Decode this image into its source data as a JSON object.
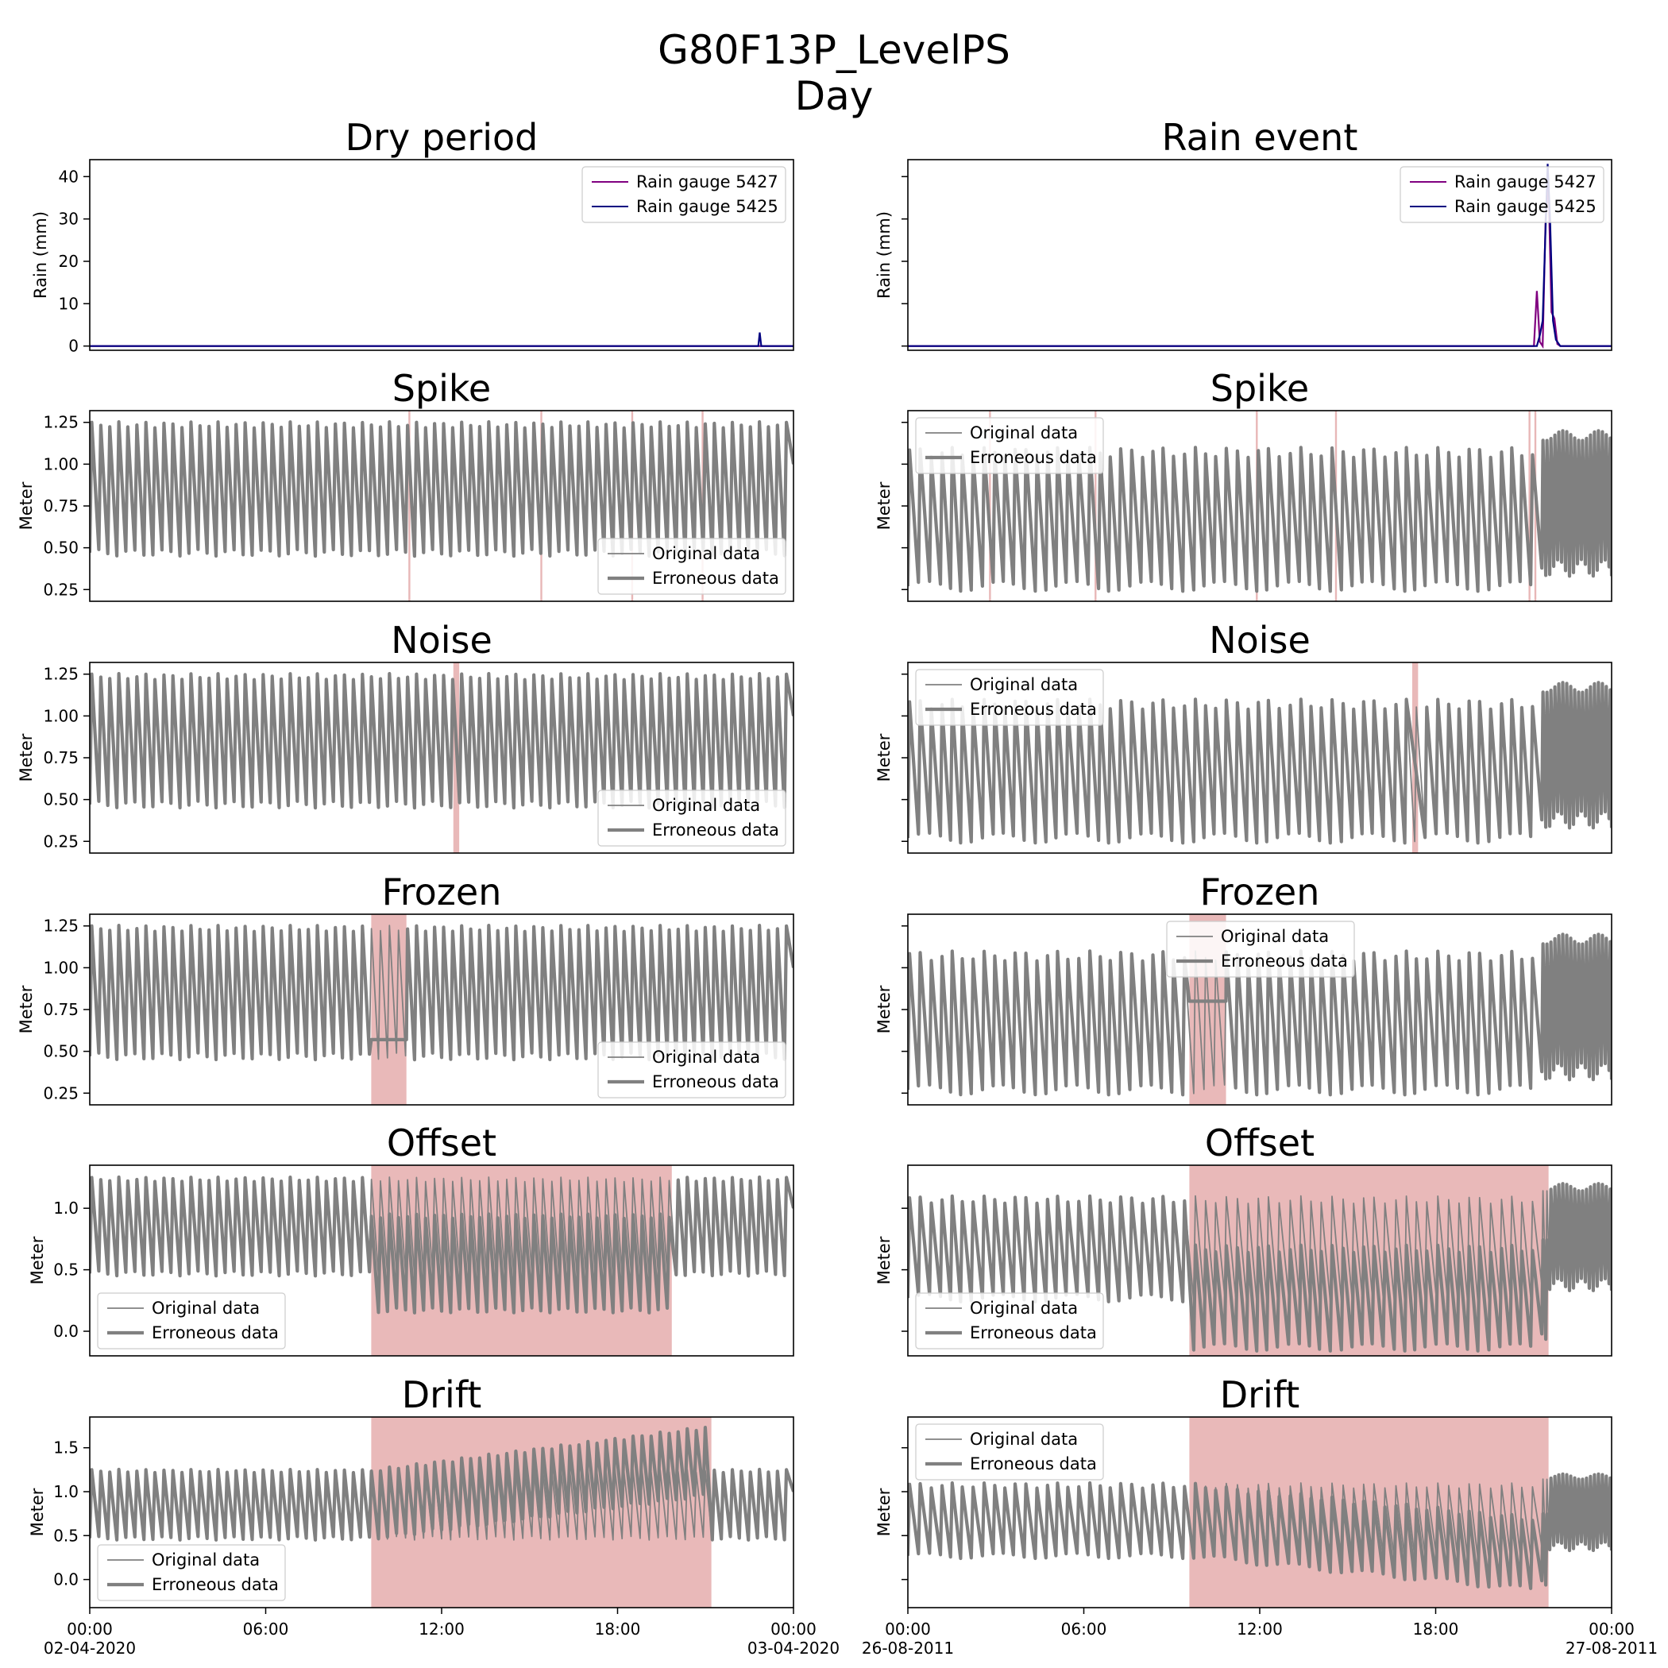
{
  "figure": {
    "title_line1": "G80F13P_LevelPS",
    "title_line2": "Day"
  },
  "colors": {
    "rain_5427": "#800080",
    "rain_5425": "#000080",
    "data_line": "#808080",
    "error_span": "#d98787"
  },
  "chart_data": [
    {
      "id": "rain-dry",
      "type": "line",
      "title": "Dry period",
      "ylabel": "Rain (mm)",
      "ylim": [
        -1,
        44
      ],
      "yticks": [
        "0",
        "10",
        "20",
        "30",
        "40"
      ],
      "ytick_values": [
        0,
        10,
        20,
        30,
        40
      ],
      "legend_loc": "top-right",
      "x_range_hours": [
        0,
        24
      ],
      "series": [
        {
          "name": "Rain gauge 5427",
          "points": [
            [
              0,
              0
            ],
            [
              24,
              0
            ]
          ]
        },
        {
          "name": "Rain gauge 5425",
          "points": [
            [
              0,
              0
            ],
            [
              22.8,
              0
            ],
            [
              22.85,
              3.2
            ],
            [
              22.9,
              0
            ],
            [
              24,
              0
            ]
          ]
        }
      ]
    },
    {
      "id": "rain-event",
      "type": "line",
      "title": "Rain event",
      "ylabel": "Rain (mm)",
      "ylim": [
        -1,
        44
      ],
      "yticks": [
        "",
        "",
        "",
        "",
        ""
      ],
      "ytick_values": [
        0,
        10,
        20,
        30,
        40
      ],
      "legend_loc": "top-right",
      "x_range_hours": [
        0,
        24
      ],
      "series": [
        {
          "name": "Rain gauge 5427",
          "points": [
            [
              0,
              0
            ],
            [
              21.35,
              0
            ],
            [
              21.45,
              13
            ],
            [
              21.55,
              1
            ],
            [
              21.65,
              0
            ],
            [
              21.75,
              30
            ],
            [
              21.85,
              38
            ],
            [
              21.95,
              8
            ],
            [
              22.05,
              6.5
            ],
            [
              22.15,
              0.5
            ],
            [
              22.25,
              0
            ],
            [
              24,
              0
            ]
          ]
        },
        {
          "name": "Rain gauge 5425",
          "points": [
            [
              0,
              0
            ],
            [
              21.45,
              0
            ],
            [
              21.55,
              2.5
            ],
            [
              21.65,
              6
            ],
            [
              21.75,
              28
            ],
            [
              21.82,
              43
            ],
            [
              21.9,
              30
            ],
            [
              22.0,
              6
            ],
            [
              22.1,
              1.5
            ],
            [
              22.25,
              0
            ],
            [
              24,
              0
            ]
          ]
        }
      ]
    },
    {
      "id": "spike-dry",
      "type": "line",
      "title": "Spike",
      "ylabel": "Meter",
      "ylim": [
        0.18,
        1.32
      ],
      "yticks": [
        "0.25",
        "0.50",
        "0.75",
        "1.00",
        "1.25"
      ],
      "ytick_values": [
        0.25,
        0.5,
        0.75,
        1.0,
        1.25
      ],
      "legend": [
        "Original data",
        "Erroneous data"
      ],
      "legend_loc": "lower-right",
      "error_type": "spike",
      "error_times_hours": [
        10.9,
        15.4,
        18.5,
        20.9
      ]
    },
    {
      "id": "spike-rain",
      "type": "line",
      "title": "Spike",
      "ylabel": "Meter",
      "ylim": [
        0.18,
        1.32
      ],
      "yticks": [
        "",
        "",
        "",
        "",
        ""
      ],
      "ytick_values": [
        0.25,
        0.5,
        0.75,
        1.0,
        1.25
      ],
      "legend": [
        "Original data",
        "Erroneous data"
      ],
      "legend_loc": "top-left",
      "error_type": "spike",
      "error_times_hours": [
        2.8,
        6.4,
        11.9,
        14.6,
        21.2,
        21.4
      ]
    },
    {
      "id": "noise-dry",
      "type": "line",
      "title": "Noise",
      "ylabel": "Meter",
      "ylim": [
        0.18,
        1.32
      ],
      "yticks": [
        "0.25",
        "0.50",
        "0.75",
        "1.00",
        "1.25"
      ],
      "ytick_values": [
        0.25,
        0.5,
        0.75,
        1.0,
        1.25
      ],
      "legend": [
        "Original data",
        "Erroneous data"
      ],
      "legend_loc": "lower-right",
      "error_type": "noise",
      "error_span_hours": [
        12.4,
        12.6
      ]
    },
    {
      "id": "noise-rain",
      "type": "line",
      "title": "Noise",
      "ylabel": "Meter",
      "ylim": [
        0.18,
        1.32
      ],
      "yticks": [
        "",
        "",
        "",
        "",
        ""
      ],
      "ytick_values": [
        0.25,
        0.5,
        0.75,
        1.0,
        1.25
      ],
      "legend": [
        "Original data",
        "Erroneous data"
      ],
      "legend_loc": "top-left",
      "error_type": "noise",
      "error_span_hours": [
        17.2,
        17.4
      ]
    },
    {
      "id": "frozen-dry",
      "type": "line",
      "title": "Frozen",
      "ylabel": "Meter",
      "ylim": [
        0.18,
        1.32
      ],
      "yticks": [
        "0.25",
        "0.50",
        "0.75",
        "1.00",
        "1.25"
      ],
      "ytick_values": [
        0.25,
        0.5,
        0.75,
        1.0,
        1.25
      ],
      "legend": [
        "Original data",
        "Erroneous data"
      ],
      "legend_loc": "lower-right",
      "error_type": "frozen",
      "error_span_hours": [
        9.6,
        10.8
      ],
      "frozen_value": 0.57
    },
    {
      "id": "frozen-rain",
      "type": "line",
      "title": "Frozen",
      "ylabel": "Meter",
      "ylim": [
        0.18,
        1.32
      ],
      "yticks": [
        "",
        "",
        "",
        "",
        ""
      ],
      "ytick_values": [
        0.25,
        0.5,
        0.75,
        1.0,
        1.25
      ],
      "legend": [
        "Original data",
        "Erroneous data"
      ],
      "legend_loc": "top-center",
      "error_type": "frozen",
      "error_span_hours": [
        9.6,
        10.85
      ],
      "frozen_value": 0.8
    },
    {
      "id": "offset-dry",
      "type": "line",
      "title": "Offset",
      "ylabel": "Meter",
      "ylim": [
        -0.2,
        1.35
      ],
      "yticks": [
        "0.0",
        "0.5",
        "1.0"
      ],
      "ytick_values": [
        0.0,
        0.5,
        1.0
      ],
      "legend": [
        "Original data",
        "Erroneous data"
      ],
      "legend_loc": "lower-left",
      "error_type": "offset",
      "error_span_hours": [
        9.6,
        19.85
      ],
      "offset_value": -0.3
    },
    {
      "id": "offset-rain",
      "type": "line",
      "title": "Offset",
      "ylabel": "Meter",
      "ylim": [
        -0.2,
        1.35
      ],
      "yticks": [
        "",
        "",
        ""
      ],
      "ytick_values": [
        0.0,
        0.5,
        1.0
      ],
      "legend": [
        "Original data",
        "Erroneous data"
      ],
      "legend_loc": "lower-left",
      "error_type": "offset",
      "error_span_hours": [
        9.6,
        21.85
      ],
      "offset_value": -0.4
    },
    {
      "id": "drift-dry",
      "type": "line",
      "title": "Drift",
      "ylabel": "Meter",
      "ylim": [
        -0.32,
        1.85
      ],
      "yticks": [
        "0.0",
        "0.5",
        "1.0",
        "1.5"
      ],
      "ytick_values": [
        0.0,
        0.5,
        1.0,
        1.5
      ],
      "legend": [
        "Original data",
        "Erroneous data"
      ],
      "legend_loc": "lower-left",
      "error_type": "drift",
      "error_span_hours": [
        9.6,
        21.2
      ],
      "drift_total": 0.5,
      "xticks": [
        "00:00\n02-04-2020",
        "06:00",
        "12:00",
        "18:00",
        "00:00\n03-04-2020"
      ]
    },
    {
      "id": "drift-rain",
      "type": "line",
      "title": "Drift",
      "ylabel": "Meter",
      "ylim": [
        -0.32,
        1.85
      ],
      "yticks": [
        "",
        "",
        "",
        ""
      ],
      "ytick_values": [
        0.0,
        0.5,
        1.0,
        1.5
      ],
      "legend": [
        "Original data",
        "Erroneous data"
      ],
      "legend_loc": "top-left",
      "error_type": "drift",
      "error_span_hours": [
        9.6,
        21.85
      ],
      "drift_total": -0.4,
      "xticks": [
        "00:00\n26-08-2011",
        "06:00",
        "12:00",
        "18:00",
        "00:00\n27-08-2011"
      ]
    }
  ]
}
